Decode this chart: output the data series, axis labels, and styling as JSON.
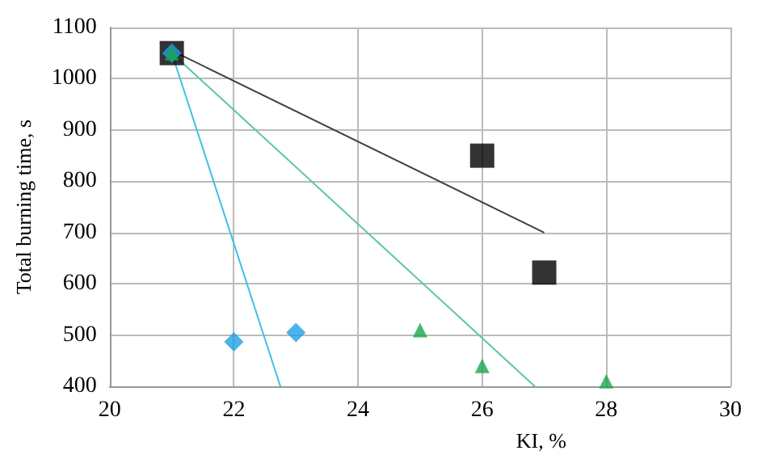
{
  "chart_data": {
    "type": "scatter",
    "xlabel": "KI, %",
    "ylabel": "Total burning time, s",
    "xlim": [
      20,
      30
    ],
    "xticks": [
      20,
      22,
      24,
      26,
      28,
      30
    ],
    "ylim": [
      400,
      1100
    ],
    "yticks": [
      400,
      500,
      600,
      700,
      800,
      900,
      1000,
      1100
    ],
    "grid": true,
    "series": [
      {
        "marker": "square",
        "color": "#000000",
        "x": [
          21,
          26,
          27
        ],
        "values": [
          1050,
          850,
          622
        ]
      },
      {
        "marker": "diamond",
        "color": "#1e9fe6",
        "x": [
          21,
          22,
          23
        ],
        "values": [
          1050,
          487,
          505
        ]
      },
      {
        "marker": "triangle",
        "color": "#19a84a",
        "x": [
          21,
          25,
          26,
          28
        ],
        "values": [
          1050,
          510,
          440,
          410
        ]
      },
      {
        "type": "line",
        "marker": "none",
        "color": "#404040",
        "x": [
          21,
          27
        ],
        "values": [
          1055,
          700
        ]
      },
      {
        "type": "line",
        "marker": "none",
        "color": "#5cc8a0",
        "x": [
          21,
          26.85
        ],
        "values": [
          1050,
          400
        ]
      },
      {
        "type": "line",
        "marker": "none",
        "color": "#40c0e0",
        "x": [
          21,
          22.75
        ],
        "values": [
          1050,
          400
        ]
      }
    ]
  }
}
